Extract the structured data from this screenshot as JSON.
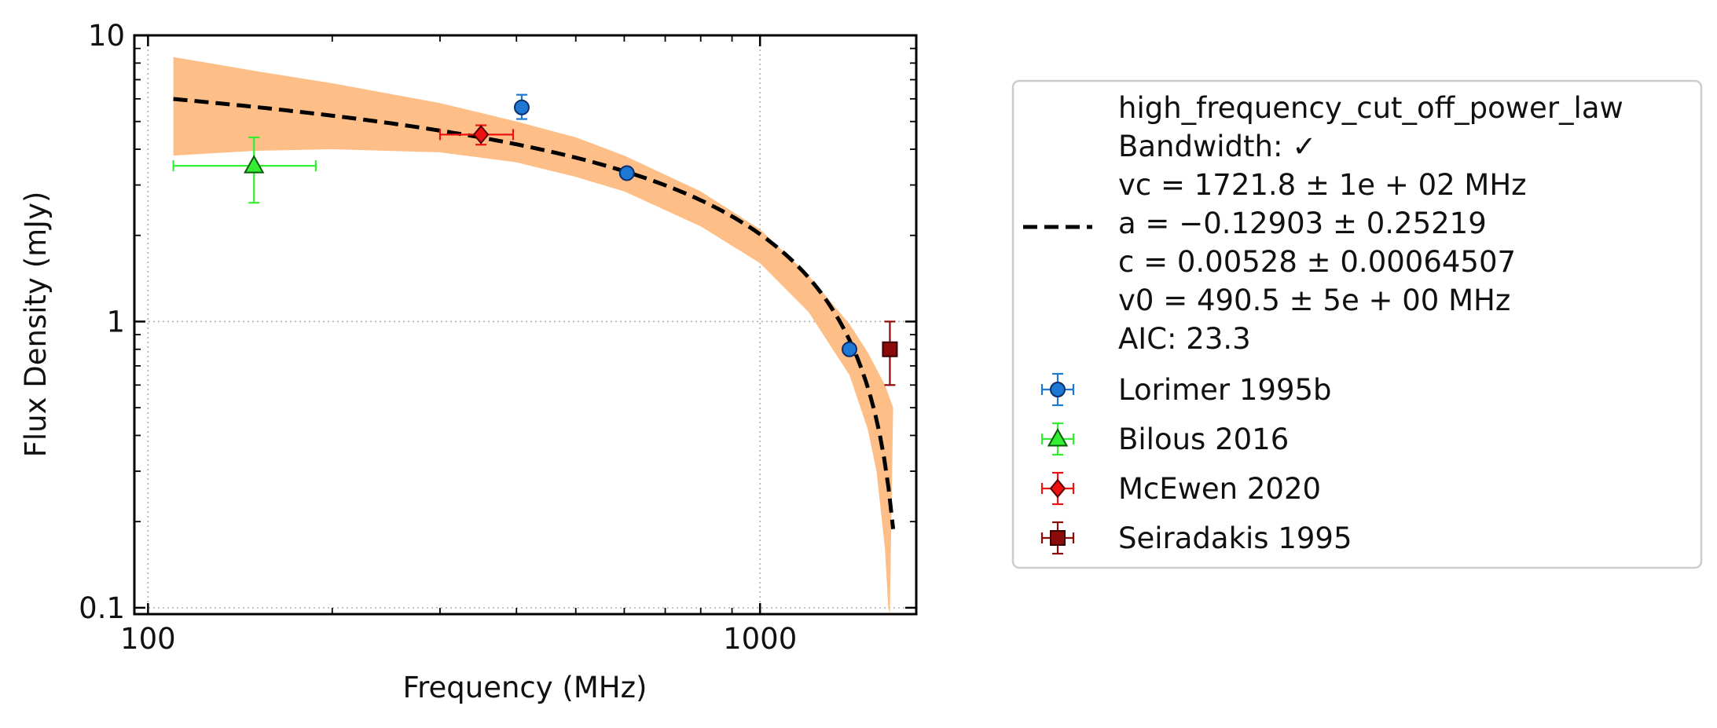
{
  "chart_data": {
    "type": "scatter",
    "xlabel": "Frequency (MHz)",
    "ylabel": "Flux Density (mJy)",
    "xscale": "log",
    "yscale": "log",
    "xlim": [
      95,
      1800
    ],
    "ylim": [
      0.095,
      10
    ],
    "x_ticks": [
      {
        "value": 100,
        "label": "100"
      },
      {
        "value": 1000,
        "label": "1000"
      }
    ],
    "y_ticks": [
      {
        "value": 0.1,
        "label": "0.1"
      },
      {
        "value": 1,
        "label": "1"
      },
      {
        "value": 10,
        "label": "10"
      }
    ],
    "grid": true,
    "legend_position": "right, outside plot",
    "fit": {
      "model": "high_frequency_cut_off_power_law",
      "label_lines": [
        "high_frequency_cut_off_power_law",
        "Bandwidth: ✓",
        "vc = 1721.8 ± 1e + 02 MHz",
        "a = −0.12903 ± 0.25219",
        "c = 0.00528 ± 0.00064507",
        "v0 = 490.5 ± 5e + 00 MHz",
        "AIC: 23.3"
      ],
      "vc": 1721.8,
      "a": -0.12903,
      "c": 0.00528,
      "v0": 490.5,
      "x_range": [
        110,
        1650
      ],
      "line_color": "#000000",
      "band_color": "#fdbf87",
      "band_upper": [
        {
          "x": 110,
          "y": 8.4
        },
        {
          "x": 150,
          "y": 7.5
        },
        {
          "x": 200,
          "y": 6.8
        },
        {
          "x": 300,
          "y": 5.8
        },
        {
          "x": 400,
          "y": 5.0
        },
        {
          "x": 500,
          "y": 4.4
        },
        {
          "x": 600,
          "y": 3.8
        },
        {
          "x": 800,
          "y": 2.85
        },
        {
          "x": 1000,
          "y": 2.1
        },
        {
          "x": 1200,
          "y": 1.45
        },
        {
          "x": 1400,
          "y": 0.98
        },
        {
          "x": 1500,
          "y": 0.78
        },
        {
          "x": 1600,
          "y": 0.6
        },
        {
          "x": 1650,
          "y": 0.5
        }
      ],
      "band_lower": [
        {
          "x": 110,
          "y": 3.8
        },
        {
          "x": 150,
          "y": 3.95
        },
        {
          "x": 200,
          "y": 4.0
        },
        {
          "x": 300,
          "y": 3.9
        },
        {
          "x": 400,
          "y": 3.6
        },
        {
          "x": 500,
          "y": 3.2
        },
        {
          "x": 600,
          "y": 2.85
        },
        {
          "x": 800,
          "y": 2.15
        },
        {
          "x": 1000,
          "y": 1.6
        },
        {
          "x": 1200,
          "y": 1.08
        },
        {
          "x": 1400,
          "y": 0.65
        },
        {
          "x": 1500,
          "y": 0.42
        },
        {
          "x": 1550,
          "y": 0.3
        },
        {
          "x": 1600,
          "y": 0.16
        },
        {
          "x": 1620,
          "y": 0.1
        },
        {
          "x": 1630,
          "y": 0.095
        }
      ]
    },
    "series": [
      {
        "name": "Lorimer 1995b",
        "marker": "circle",
        "color": "#1f77d4",
        "edge_color": "#0a2f6a",
        "points": [
          {
            "x": 408,
            "y": 5.6,
            "y_err_lo": 0.5,
            "y_err_hi": 0.6,
            "x_err": 0
          },
          {
            "x": 606,
            "y": 3.3,
            "y_err_lo": 0,
            "y_err_hi": 0,
            "x_err": 0
          },
          {
            "x": 1400,
            "y": 0.8,
            "y_err_lo": 0,
            "y_err_hi": 0,
            "x_err": 0
          }
        ]
      },
      {
        "name": "Bilous 2016",
        "marker": "triangle",
        "color": "#33ee33",
        "edge_color": "#0b5a0b",
        "points": [
          {
            "x": 149,
            "y": 3.5,
            "y_err_lo": 0.9,
            "y_err_hi": 0.9,
            "x_err_lo": 39,
            "x_err_hi": 39
          }
        ]
      },
      {
        "name": "McEwen 2020",
        "marker": "diamond",
        "color": "#ee1111",
        "edge_color": "#5a0000",
        "points": [
          {
            "x": 350,
            "y": 4.5,
            "y_err_lo": 0.35,
            "y_err_hi": 0.35,
            "x_err_lo": 50,
            "x_err_hi": 45
          }
        ]
      },
      {
        "name": "Seiradakis 1995",
        "marker": "square",
        "color": "#8b0a0a",
        "edge_color": "#3a0000",
        "points": [
          {
            "x": 1630,
            "y": 0.8,
            "y_err_lo": 0.2,
            "y_err_hi": 0.2,
            "x_err": 0
          }
        ]
      }
    ]
  }
}
